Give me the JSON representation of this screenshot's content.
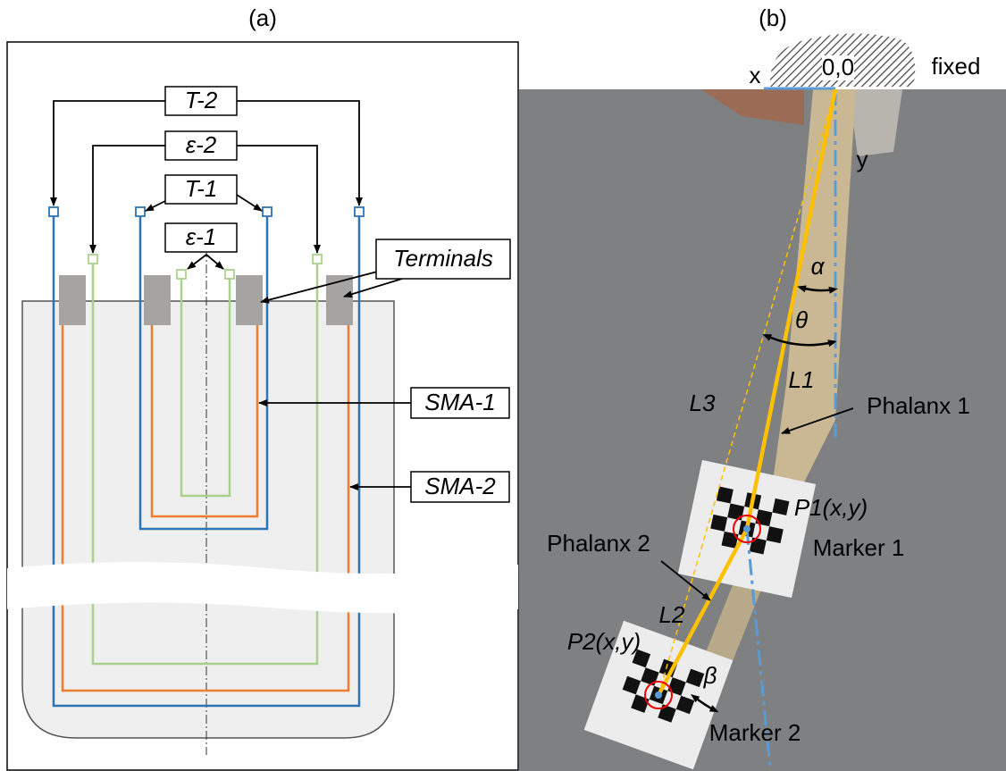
{
  "panel_a": {
    "label": "(a)",
    "boxes": {
      "t2": "T-2",
      "e2": "ε-2",
      "t1": "T-1",
      "e1": "ε-1",
      "terminals": "Terminals",
      "sma1": "SMA-1",
      "sma2": "SMA-2"
    }
  },
  "panel_b": {
    "label": "(b)",
    "x": "x",
    "origin": "0,0",
    "fixed": "fixed",
    "y": "y",
    "alpha": "α",
    "theta": "θ",
    "l1": "L1",
    "l3": "L3",
    "phalanx1": "Phalanx 1",
    "p1": "P1(x,y)",
    "marker1": "Marker 1",
    "phalanx2": "Phalanx 2",
    "l2": "L2",
    "beta": "β",
    "p2": "P2(x,y)",
    "marker2": "Marker 2"
  }
}
